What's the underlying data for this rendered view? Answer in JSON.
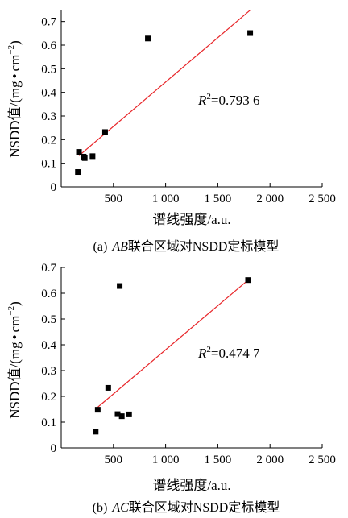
{
  "chart_data": [
    {
      "type": "scatter",
      "caption": {
        "prefix": "(a)",
        "letters": "AB",
        "rest": "联合区域对NSDD定标模型"
      },
      "xlabel": "谱线强度/a.u.",
      "ylabel": {
        "main": "NSDD值/(mg",
        "dot": "•",
        "unit": "cm",
        "exp": "−2",
        "close": ")"
      },
      "r2": {
        "symbol": "R",
        "exp": "2",
        "value": "=0.793 6"
      },
      "xlim": [
        0,
        2500
      ],
      "ylim": [
        0,
        0.75
      ],
      "xticks": [
        {
          "v": 500,
          "label": "500"
        },
        {
          "v": 1000,
          "label": "1 000"
        },
        {
          "v": 1500,
          "label": "1 500"
        },
        {
          "v": 2000,
          "label": "2 000"
        },
        {
          "v": 2500,
          "label": "2 500"
        }
      ],
      "yticks": [
        {
          "v": 0,
          "label": "0"
        },
        {
          "v": 0.1,
          "label": "0.1"
        },
        {
          "v": 0.2,
          "label": "0.2"
        },
        {
          "v": 0.3,
          "label": "0.3"
        },
        {
          "v": 0.4,
          "label": "0.4"
        },
        {
          "v": 0.5,
          "label": "0.5"
        },
        {
          "v": 0.6,
          "label": "0.6"
        },
        {
          "v": 0.7,
          "label": "0.7"
        }
      ],
      "points": [
        {
          "x": 160,
          "y": 0.063
        },
        {
          "x": 170,
          "y": 0.148
        },
        {
          "x": 215,
          "y": 0.128
        },
        {
          "x": 225,
          "y": 0.122
        },
        {
          "x": 300,
          "y": 0.13
        },
        {
          "x": 420,
          "y": 0.232
        },
        {
          "x": 830,
          "y": 0.628
        },
        {
          "x": 1810,
          "y": 0.651
        }
      ],
      "fit": {
        "x1": 170,
        "y1": 0.132,
        "x2": 1810,
        "y2": 0.748
      },
      "colors": {
        "fit": "#e8262a",
        "marker": "#000000"
      }
    },
    {
      "type": "scatter",
      "caption": {
        "prefix": "(b)",
        "letters": "AC",
        "rest": "联合区域对NSDD定标模型"
      },
      "xlabel": "谱线强度/a.u.",
      "ylabel": {
        "main": "NSDD值/(mg",
        "dot": "•",
        "unit": "cm",
        "exp": "−2",
        "close": ")"
      },
      "r2": {
        "symbol": "R",
        "exp": "2",
        "value": "=0.474 7"
      },
      "xlim": [
        0,
        2500
      ],
      "ylim": [
        0,
        0.7
      ],
      "xticks": [
        {
          "v": 500,
          "label": "500"
        },
        {
          "v": 1000,
          "label": "1 000"
        },
        {
          "v": 1500,
          "label": "1 500"
        },
        {
          "v": 2000,
          "label": "2 000"
        },
        {
          "v": 2500,
          "label": "2 500"
        }
      ],
      "yticks": [
        {
          "v": 0,
          "label": "0"
        },
        {
          "v": 0.1,
          "label": "0.1"
        },
        {
          "v": 0.2,
          "label": "0.2"
        },
        {
          "v": 0.3,
          "label": "0.3"
        },
        {
          "v": 0.4,
          "label": "0.4"
        },
        {
          "v": 0.5,
          "label": "0.5"
        },
        {
          "v": 0.6,
          "label": "0.6"
        },
        {
          "v": 0.7,
          "label": "0.7"
        }
      ],
      "points": [
        {
          "x": 330,
          "y": 0.063
        },
        {
          "x": 350,
          "y": 0.148
        },
        {
          "x": 450,
          "y": 0.233
        },
        {
          "x": 540,
          "y": 0.131
        },
        {
          "x": 580,
          "y": 0.123
        },
        {
          "x": 650,
          "y": 0.13
        },
        {
          "x": 560,
          "y": 0.628
        },
        {
          "x": 1790,
          "y": 0.651
        }
      ],
      "fit": {
        "x1": 350,
        "y1": 0.158,
        "x2": 1790,
        "y2": 0.651
      },
      "colors": {
        "fit": "#e8262a",
        "marker": "#000000"
      }
    }
  ]
}
